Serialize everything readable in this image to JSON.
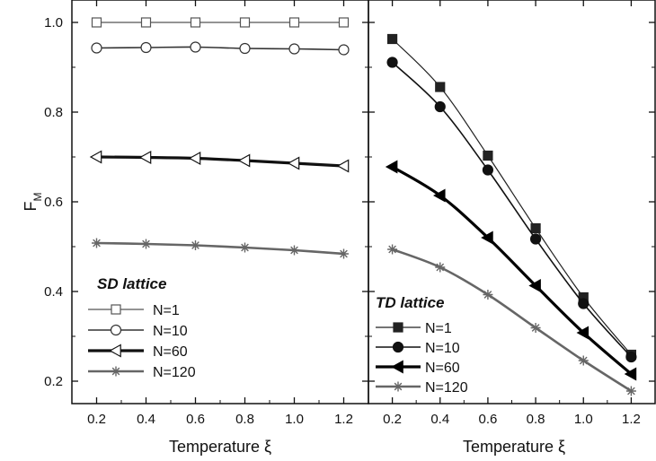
{
  "chart_data": [
    {
      "type": "line",
      "legend_title": "SD lattice",
      "legend_position": "bottom-left",
      "xlabel": "Temperature ξ",
      "ylabel": "F",
      "ylabel_subscript": "M",
      "xlim": [
        0.1,
        1.3
      ],
      "ylim": [
        0.15,
        1.05
      ],
      "x_ticks": [
        0.2,
        0.4,
        0.6,
        0.8,
        1.0,
        1.2
      ],
      "x_tick_labels": [
        "0.2",
        "0.4",
        "0.6",
        "0.8",
        "1.0",
        "1.2"
      ],
      "y_ticks": [
        0.2,
        0.4,
        0.6,
        0.8,
        1.0
      ],
      "y_tick_labels": [
        "0.2",
        "0.4",
        "0.6",
        "0.8",
        "1.0"
      ],
      "grid": false,
      "x": [
        0.2,
        0.4,
        0.6,
        0.8,
        1.0,
        1.2
      ],
      "series": [
        {
          "name": "N=1",
          "marker": "open-square",
          "color": "#555555",
          "values": [
            1.0,
            1.0,
            1.0,
            1.0,
            1.0,
            1.0
          ]
        },
        {
          "name": "N=10",
          "marker": "open-circle",
          "color": "#333333",
          "values": [
            0.943,
            0.944,
            0.945,
            0.942,
            0.941,
            0.939
          ]
        },
        {
          "name": "N=60",
          "marker": "open-triangle-left",
          "color": "#111111",
          "values": [
            0.7,
            0.699,
            0.697,
            0.692,
            0.686,
            0.68
          ]
        },
        {
          "name": "N=120",
          "marker": "star",
          "color": "#666666",
          "values": [
            0.508,
            0.506,
            0.503,
            0.498,
            0.492,
            0.484
          ]
        }
      ]
    },
    {
      "type": "line",
      "legend_title": "TD lattice",
      "legend_position": "bottom-left",
      "xlabel": "Temperature ξ",
      "xlim": [
        0.1,
        1.3
      ],
      "ylim": [
        0.15,
        1.05
      ],
      "x_ticks": [
        0.2,
        0.4,
        0.6,
        0.8,
        1.0,
        1.2
      ],
      "x_tick_labels": [
        "0.2",
        "0.4",
        "0.6",
        "0.8",
        "1.0",
        "1.2"
      ],
      "grid": false,
      "x": [
        0.2,
        0.4,
        0.6,
        0.8,
        1.0,
        1.2
      ],
      "series": [
        {
          "name": "N=1",
          "marker": "filled-square",
          "color": "#222222",
          "values": [
            0.963,
            0.856,
            0.703,
            0.541,
            0.387,
            0.259
          ]
        },
        {
          "name": "N=10",
          "marker": "filled-circle",
          "color": "#111111",
          "values": [
            0.911,
            0.812,
            0.671,
            0.517,
            0.373,
            0.254
          ]
        },
        {
          "name": "N=60",
          "marker": "filled-triangle-left",
          "color": "#000000",
          "values": [
            0.678,
            0.614,
            0.52,
            0.413,
            0.308,
            0.216
          ]
        },
        {
          "name": "N=120",
          "marker": "star",
          "color": "#666666",
          "values": [
            0.494,
            0.454,
            0.393,
            0.319,
            0.246,
            0.178
          ]
        }
      ]
    }
  ]
}
